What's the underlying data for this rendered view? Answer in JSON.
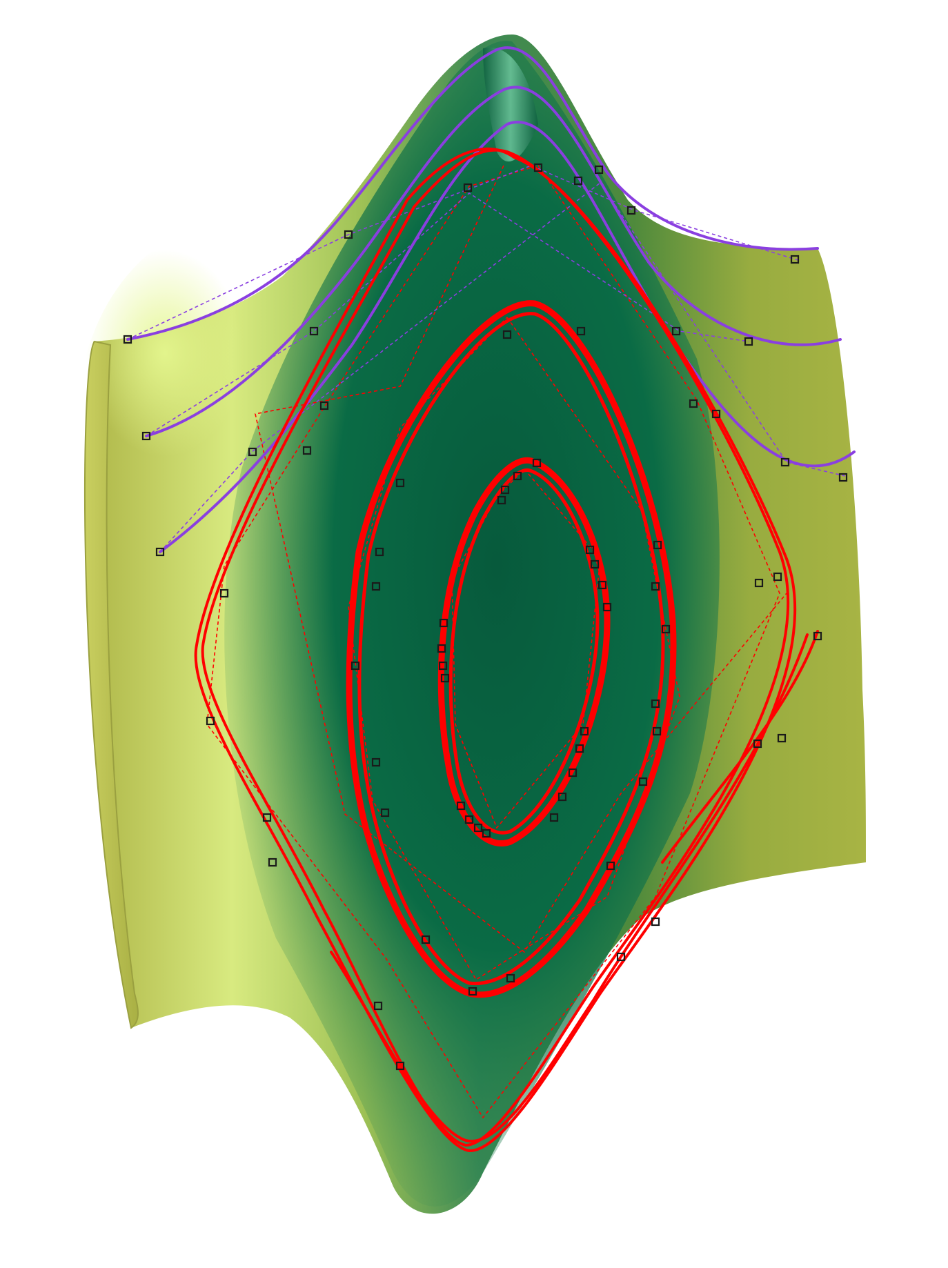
{
  "figure": {
    "description_label": "",
    "colors": {
      "background": "#ffffff",
      "surface_outer": "#b2b845",
      "surface_outer_light": "#e2f088",
      "surface_inner": "#0b6b45",
      "surface_inner_dark": "#064a31",
      "highlight": "#8fe0b8",
      "curve_red": "#ff0000",
      "curve_purple": "#8a3fe0",
      "control_point": "#1a1a1a"
    },
    "icons": [
      "surface-3d",
      "spline-curve",
      "control-point-marker"
    ]
  }
}
